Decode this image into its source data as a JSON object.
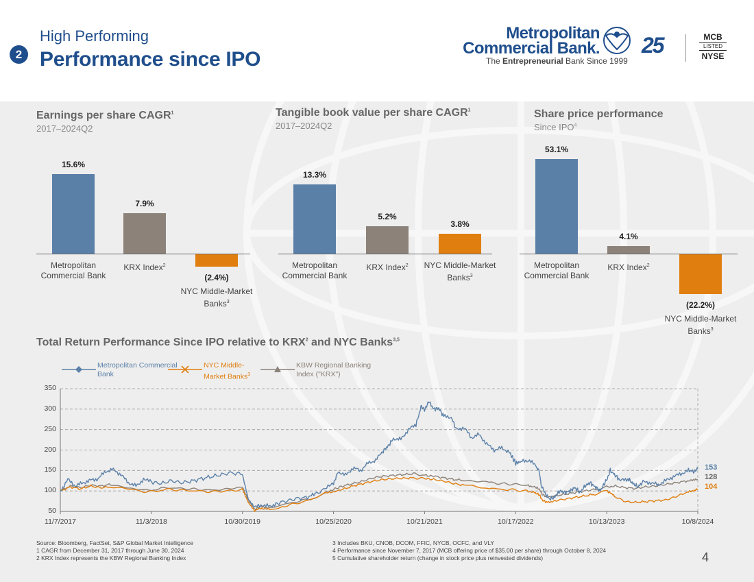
{
  "header": {
    "section_number": "2",
    "subtitle": "High Performing",
    "title": "Performance since IPO"
  },
  "logo": {
    "line1": "Metropolitan",
    "line2": "Commercial Bank.",
    "tagline_pre": "The ",
    "tagline_bold": "Entrepreneurial",
    "tagline_post": " Bank Since 1999",
    "anniversary": "25",
    "exchange_top": "MCB",
    "exchange_mid": "LISTED",
    "exchange_bottom": "NYSE"
  },
  "colors": {
    "blue": "#5b80a8",
    "gray": "#8c8279",
    "orange": "#e07f10",
    "title_blue": "#1f4e8c"
  },
  "chart_data": [
    {
      "type": "bar",
      "title": "Earnings per share CAGR",
      "title_sup": "1",
      "subtitle": "2017–2024Q2",
      "categories": [
        "Metropolitan Commercial Bank",
        "KRX Index",
        "NYC Middle-Market Banks"
      ],
      "category_lines": [
        [
          "Metropolitan",
          "Commercial Bank"
        ],
        [
          "KRX Index"
        ],
        [
          "NYC Middle-Market",
          "Banks"
        ]
      ],
      "category_sups": [
        "",
        "2",
        "3"
      ],
      "values": [
        15.6,
        7.9,
        -2.4
      ],
      "labels": [
        "15.6%",
        "7.9%",
        "(2.4%)"
      ],
      "ylim": [
        -5,
        20
      ]
    },
    {
      "type": "bar",
      "title": "Tangible book value per share CAGR",
      "title_sup": "1",
      "subtitle": "2017–2024Q2",
      "categories": [
        "Metropolitan Commercial Bank",
        "KRX Index",
        "NYC Middle-Market Banks"
      ],
      "category_lines": [
        [
          "Metropolitan",
          "Commercial Bank"
        ],
        [
          "KRX Index"
        ],
        [
          "NYC Middle-Market",
          "Banks"
        ]
      ],
      "category_sups": [
        "",
        "2",
        "3"
      ],
      "values": [
        13.3,
        5.2,
        3.8
      ],
      "labels": [
        "13.3%",
        "5.2%",
        "3.8%"
      ],
      "ylim": [
        -5,
        20
      ]
    },
    {
      "type": "bar",
      "title": "Share price performance",
      "title_sup": "",
      "subtitle": "Since IPO",
      "subtitle_sup": "4",
      "categories": [
        "Metropolitan Commercial Bank",
        "KRX Index",
        "NYC Middle-Market Banks"
      ],
      "category_lines": [
        [
          "Metropolitan",
          "Commercial Bank"
        ],
        [
          "KRX Index"
        ],
        [
          "NYC Middle-Market",
          "Banks"
        ]
      ],
      "category_sups": [
        "",
        "2",
        "3"
      ],
      "values": [
        53.1,
        4.1,
        -22.2
      ],
      "labels": [
        "53.1%",
        "4.1%",
        "(22.2%)"
      ],
      "ylim": [
        -30,
        60
      ]
    },
    {
      "type": "line",
      "title": "Total Return Performance Since IPO relative to KRX",
      "title_sup1": "2",
      "title_mid": " and NYC Banks",
      "title_sup2": "3,5",
      "ylim": [
        50,
        350
      ],
      "yticks": [
        "350",
        "300",
        "250",
        "200",
        "150",
        "100",
        "50"
      ],
      "ytick_values": [
        350,
        300,
        250,
        200,
        150,
        100,
        50
      ],
      "x_range_days": [
        0,
        2527
      ],
      "x_tick_labels": [
        "11/7/2017",
        "11/3/2018",
        "10/30/2019",
        "10/25/2020",
        "10/21/2021",
        "10/17/2022",
        "10/13/2023",
        "10/8/2024"
      ],
      "x_tick_days": [
        0,
        361,
        722,
        1083,
        1444,
        1805,
        2166,
        2527
      ],
      "series": [
        {
          "name": "Metropolitan Commercial Bank",
          "legend_lines": [
            "Metropolitan Commercial",
            "Bank"
          ],
          "legend_sup": "",
          "marker": "diamond",
          "end_label": "153",
          "points": [
            [
              0,
              100
            ],
            [
              30,
              128
            ],
            [
              60,
              112
            ],
            [
              90,
              120
            ],
            [
              120,
              126
            ],
            [
              150,
              130
            ],
            [
              180,
              148
            ],
            [
              210,
              152
            ],
            [
              240,
              140
            ],
            [
              270,
              120
            ],
            [
              300,
              112
            ],
            [
              330,
              128
            ],
            [
              361,
              122
            ],
            [
              400,
              118
            ],
            [
              440,
              125
            ],
            [
              480,
              120
            ],
            [
              520,
              124
            ],
            [
              560,
              130
            ],
            [
              600,
              135
            ],
            [
              640,
              140
            ],
            [
              680,
              145
            ],
            [
              722,
              140
            ],
            [
              745,
              80
            ],
            [
              770,
              60
            ],
            [
              800,
              66
            ],
            [
              830,
              62
            ],
            [
              860,
              70
            ],
            [
              900,
              76
            ],
            [
              940,
              82
            ],
            [
              980,
              84
            ],
            [
              1010,
              92
            ],
            [
              1050,
              105
            ],
            [
              1083,
              118
            ],
            [
              1100,
              148
            ],
            [
              1130,
              138
            ],
            [
              1160,
              156
            ],
            [
              1190,
              150
            ],
            [
              1220,
              168
            ],
            [
              1250,
              175
            ],
            [
              1280,
              198
            ],
            [
              1300,
              210
            ],
            [
              1320,
              228
            ],
            [
              1350,
              226
            ],
            [
              1380,
              250
            ],
            [
              1410,
              262
            ],
            [
              1430,
              305
            ],
            [
              1444,
              300
            ],
            [
              1460,
              320
            ],
            [
              1480,
              300
            ],
            [
              1500,
              302
            ],
            [
              1520,
              282
            ],
            [
              1550,
              280
            ],
            [
              1570,
              250
            ],
            [
              1600,
              255
            ],
            [
              1630,
              230
            ],
            [
              1660,
              238
            ],
            [
              1690,
              215
            ],
            [
              1720,
              200
            ],
            [
              1750,
              205
            ],
            [
              1780,
              195
            ],
            [
              1805,
              168
            ],
            [
              1830,
              172
            ],
            [
              1860,
              175
            ],
            [
              1890,
              158
            ],
            [
              1900,
              145
            ],
            [
              1905,
              115
            ],
            [
              1920,
              95
            ],
            [
              1940,
              80
            ],
            [
              1960,
              85
            ],
            [
              1980,
              100
            ],
            [
              2000,
              96
            ],
            [
              2020,
              100
            ],
            [
              2040,
              108
            ],
            [
              2060,
              96
            ],
            [
              2080,
              112
            ],
            [
              2100,
              120
            ],
            [
              2120,
              110
            ],
            [
              2140,
              100
            ],
            [
              2166,
              128
            ],
            [
              2180,
              150
            ],
            [
              2200,
              138
            ],
            [
              2220,
              125
            ],
            [
              2250,
              130
            ],
            [
              2270,
              118
            ],
            [
              2290,
              110
            ],
            [
              2310,
              122
            ],
            [
              2340,
              120
            ],
            [
              2370,
              115
            ],
            [
              2400,
              125
            ],
            [
              2430,
              135
            ],
            [
              2460,
              142
            ],
            [
              2490,
              150
            ],
            [
              2510,
              148
            ],
            [
              2527,
              153
            ]
          ]
        },
        {
          "name": "NYC Middle-Market Banks",
          "legend_lines": [
            "NYC Middle-",
            "Market Banks"
          ],
          "legend_sup": "3",
          "marker": "x",
          "end_label": "104",
          "points": [
            [
              0,
              100
            ],
            [
              40,
              110
            ],
            [
              80,
              105
            ],
            [
              120,
              112
            ],
            [
              160,
              108
            ],
            [
              200,
              110
            ],
            [
              250,
              106
            ],
            [
              300,
              100
            ],
            [
              361,
              98
            ],
            [
              420,
              104
            ],
            [
              480,
              102
            ],
            [
              540,
              100
            ],
            [
              600,
              98
            ],
            [
              660,
              100
            ],
            [
              722,
              104
            ],
            [
              745,
              72
            ],
            [
              770,
              52
            ],
            [
              800,
              58
            ],
            [
              830,
              55
            ],
            [
              880,
              62
            ],
            [
              940,
              70
            ],
            [
              1000,
              80
            ],
            [
              1050,
              94
            ],
            [
              1083,
              98
            ],
            [
              1120,
              104
            ],
            [
              1160,
              112
            ],
            [
              1200,
              118
            ],
            [
              1240,
              124
            ],
            [
              1280,
              128
            ],
            [
              1320,
              130
            ],
            [
              1360,
              131
            ],
            [
              1400,
              132
            ],
            [
              1444,
              130
            ],
            [
              1480,
              128
            ],
            [
              1520,
              124
            ],
            [
              1560,
              118
            ],
            [
              1600,
              114
            ],
            [
              1650,
              110
            ],
            [
              1700,
              106
            ],
            [
              1760,
              104
            ],
            [
              1805,
              102
            ],
            [
              1850,
              100
            ],
            [
              1880,
              96
            ],
            [
              1900,
              90
            ],
            [
              1910,
              78
            ],
            [
              1930,
              72
            ],
            [
              1960,
              76
            ],
            [
              2000,
              80
            ],
            [
              2040,
              84
            ],
            [
              2080,
              88
            ],
            [
              2120,
              92
            ],
            [
              2166,
              100
            ],
            [
              2180,
              96
            ],
            [
              2200,
              86
            ],
            [
              2240,
              74
            ],
            [
              2280,
              72
            ],
            [
              2320,
              74
            ],
            [
              2360,
              76
            ],
            [
              2400,
              78
            ],
            [
              2440,
              86
            ],
            [
              2480,
              96
            ],
            [
              2510,
              100
            ],
            [
              2527,
              104
            ]
          ]
        },
        {
          "name": "KBW Regional Banking Index (\"KRX\")",
          "legend_lines": [
            "KBW Regional Banking",
            "Index (\"KRX\")"
          ],
          "legend_sup": "",
          "marker": "triangle",
          "end_label": "128",
          "points": [
            [
              0,
              100
            ],
            [
              40,
              112
            ],
            [
              80,
              108
            ],
            [
              120,
              114
            ],
            [
              160,
              112
            ],
            [
              200,
              116
            ],
            [
              250,
              112
            ],
            [
              300,
              104
            ],
            [
              361,
              102
            ],
            [
              420,
              108
            ],
            [
              480,
              106
            ],
            [
              540,
              104
            ],
            [
              600,
              102
            ],
            [
              660,
              104
            ],
            [
              722,
              110
            ],
            [
              745,
              78
            ],
            [
              770,
              56
            ],
            [
              800,
              62
            ],
            [
              830,
              58
            ],
            [
              880,
              66
            ],
            [
              940,
              74
            ],
            [
              1000,
              82
            ],
            [
              1050,
              96
            ],
            [
              1083,
              104
            ],
            [
              1120,
              112
            ],
            [
              1160,
              118
            ],
            [
              1200,
              124
            ],
            [
              1240,
              132
            ],
            [
              1280,
              136
            ],
            [
              1320,
              138
            ],
            [
              1360,
              140
            ],
            [
              1400,
              142
            ],
            [
              1444,
              138
            ],
            [
              1480,
              136
            ],
            [
              1520,
              132
            ],
            [
              1560,
              128
            ],
            [
              1600,
              126
            ],
            [
              1650,
              122
            ],
            [
              1700,
              120
            ],
            [
              1760,
              118
            ],
            [
              1805,
              116
            ],
            [
              1850,
              114
            ],
            [
              1880,
              110
            ],
            [
              1900,
              104
            ],
            [
              1910,
              92
            ],
            [
              1930,
              84
            ],
            [
              1960,
              88
            ],
            [
              2000,
              92
            ],
            [
              2040,
              96
            ],
            [
              2080,
              100
            ],
            [
              2120,
              104
            ],
            [
              2166,
              110
            ],
            [
              2200,
              112
            ],
            [
              2240,
              108
            ],
            [
              2280,
              106
            ],
            [
              2320,
              110
            ],
            [
              2360,
              112
            ],
            [
              2400,
              116
            ],
            [
              2440,
              120
            ],
            [
              2480,
              124
            ],
            [
              2510,
              126
            ],
            [
              2527,
              128
            ]
          ]
        }
      ]
    }
  ],
  "footnotes_left": [
    "Source: Bloomberg, FactSet, S&P Global Market Intelligence",
    "1 CAGR from December 31, 2017 through June 30, 2024",
    "2 KRX Index represents the KBW Regional Banking Index"
  ],
  "footnotes_right": [
    "3 Includes BKU, CNOB, DCOM, FFIC, NYCB, OCFC, and VLY",
    "4 Performance since November 7, 2017 (MCB offering price of $35.00 per share) through October 8, 2024",
    "5 Cumulative shareholder return (change in stock price plus reinvested dividends)"
  ],
  "page_number": "4"
}
